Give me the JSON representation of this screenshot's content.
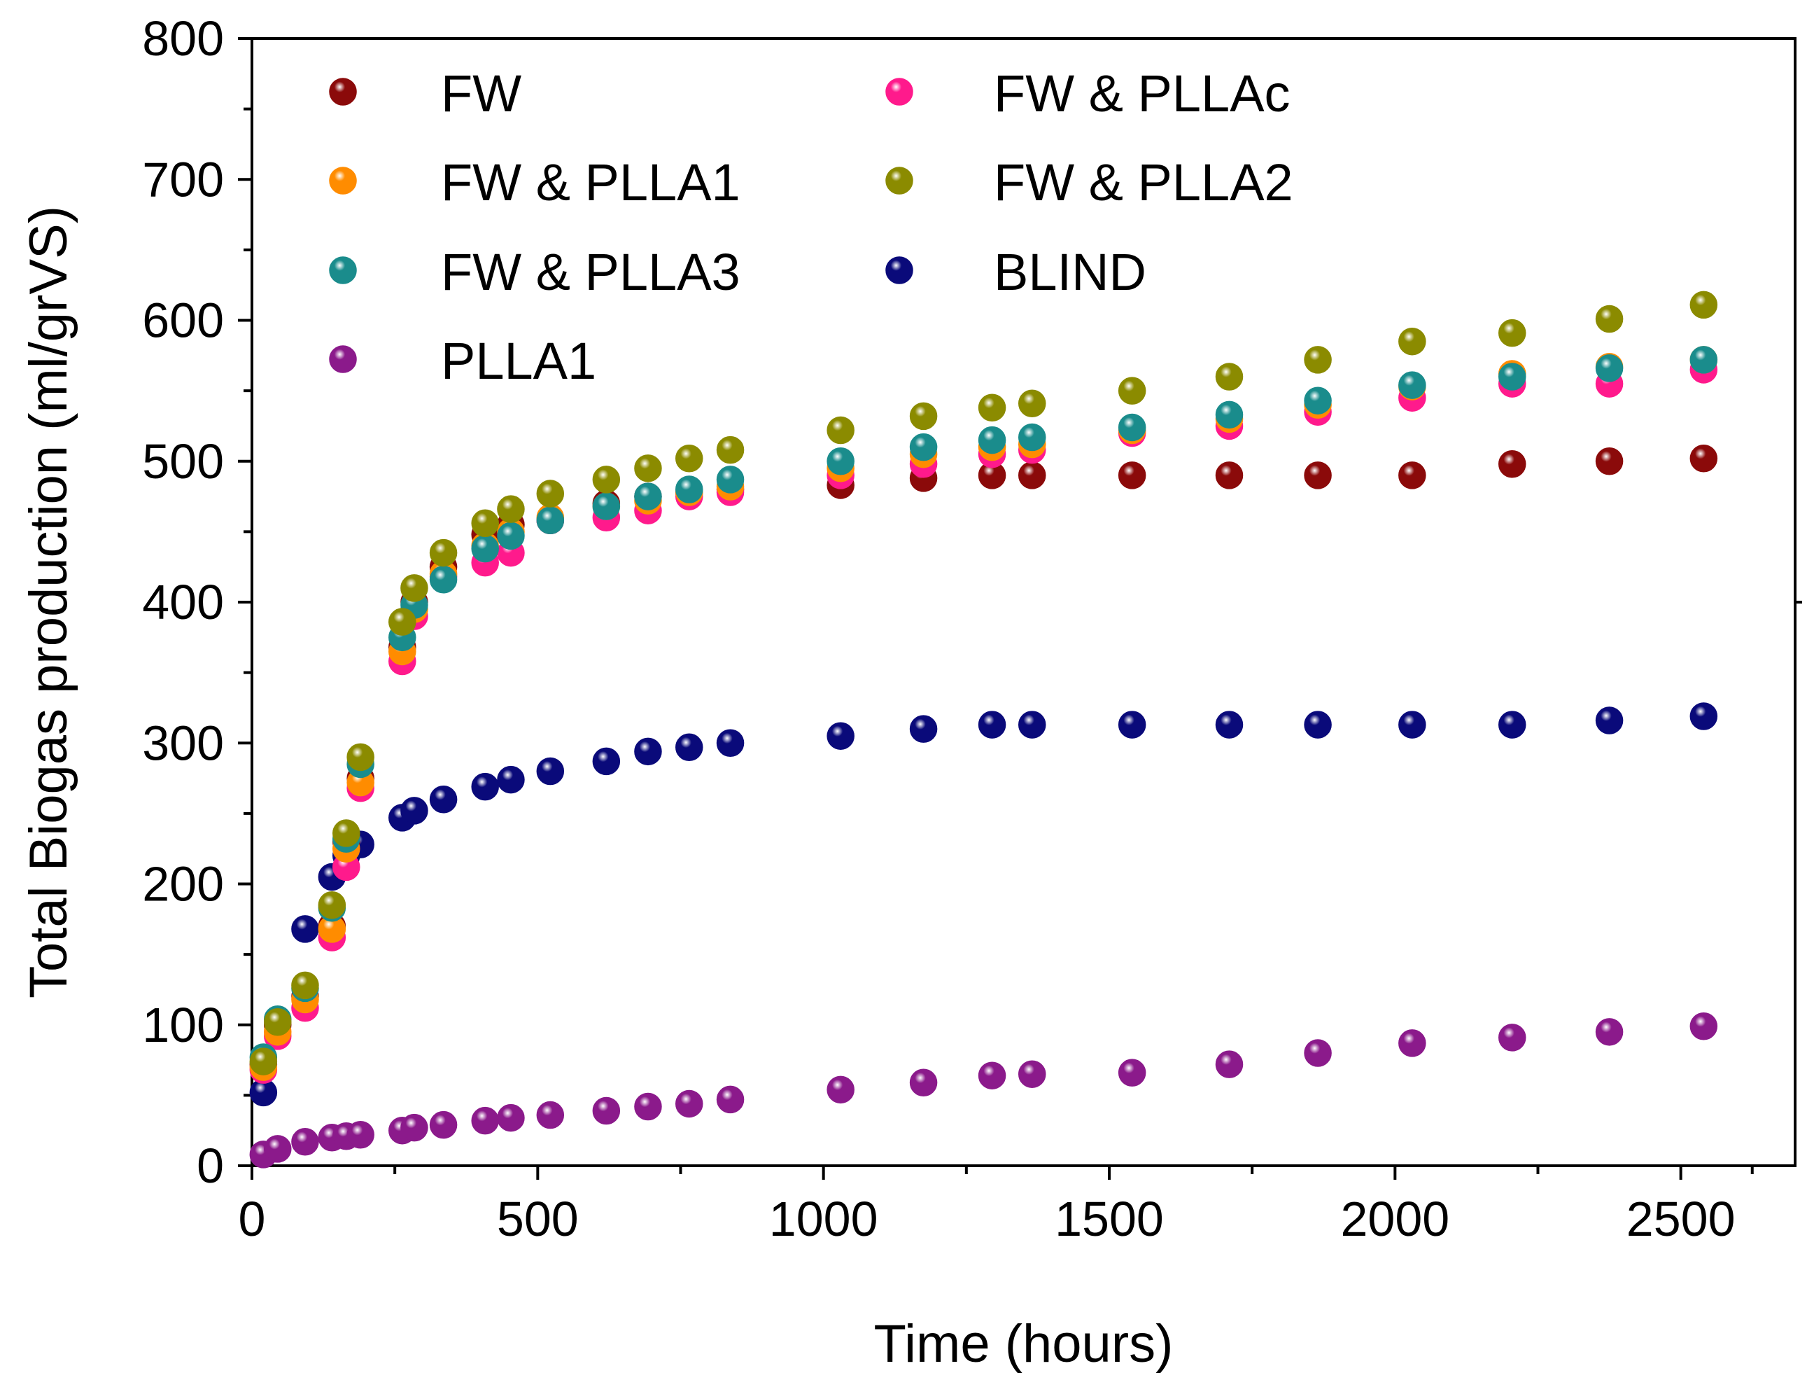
{
  "chart_data": {
    "type": "scatter",
    "title": "",
    "xlabel": "Time (hours)",
    "ylabel": "Total Biogas production (ml/grVS)",
    "xlim": [
      0,
      2700
    ],
    "ylim": [
      0,
      800
    ],
    "xticks": [
      0,
      500,
      1000,
      1500,
      2000,
      2500
    ],
    "yticks": [
      0,
      100,
      200,
      300,
      400,
      500,
      600,
      700,
      800
    ],
    "xtick_labels": [
      "0",
      "500",
      "1000",
      "1500",
      "2000",
      "2500"
    ],
    "ytick_labels": [
      "0",
      "100",
      "200",
      "300",
      "400",
      "500",
      "600",
      "700",
      "800"
    ],
    "grid": false,
    "legend": "top-left, two columns",
    "series": [
      {
        "name": "FW",
        "color": "#8b0a0a",
        "x": [
          20,
          45,
          93,
          140,
          165,
          190,
          263,
          284,
          335,
          408,
          453,
          522,
          620,
          693,
          765,
          837,
          1030,
          1175,
          1295,
          1365,
          1540,
          1710,
          1865,
          2030,
          2205,
          2375,
          2540
        ],
        "y": [
          72,
          100,
          120,
          170,
          230,
          275,
          368,
          400,
          425,
          448,
          455,
          458,
          470,
          475,
          478,
          480,
          483,
          488,
          490,
          490,
          490,
          490,
          490,
          490,
          498,
          500,
          502
        ]
      },
      {
        "name": "FW & PLLAc",
        "color": "#ff1a8c",
        "x": [
          20,
          45,
          93,
          140,
          165,
          190,
          263,
          284,
          335,
          408,
          453,
          522,
          620,
          693,
          765,
          837,
          1030,
          1175,
          1295,
          1365,
          1540,
          1710,
          1865,
          2030,
          2205,
          2375,
          2540
        ],
        "y": [
          68,
          92,
          112,
          162,
          212,
          268,
          358,
          390,
          418,
          428,
          435,
          458,
          460,
          465,
          475,
          478,
          490,
          498,
          505,
          508,
          520,
          525,
          535,
          545,
          555,
          555,
          565
        ]
      },
      {
        "name": "FW & PLLA1",
        "color": "#ff8c00",
        "x": [
          20,
          45,
          93,
          140,
          165,
          190,
          263,
          284,
          335,
          408,
          453,
          522,
          620,
          693,
          765,
          837,
          1030,
          1175,
          1295,
          1365,
          1540,
          1710,
          1865,
          2030,
          2205,
          2375,
          2540
        ],
        "y": [
          70,
          95,
          118,
          168,
          225,
          272,
          365,
          395,
          420,
          440,
          450,
          460,
          468,
          472,
          478,
          482,
          495,
          505,
          510,
          512,
          522,
          530,
          540,
          553,
          562,
          567,
          572
        ]
      },
      {
        "name": "FW & PLLA2",
        "color": "#8b8b00",
        "x": [
          20,
          45,
          93,
          140,
          165,
          190,
          263,
          284,
          335,
          408,
          453,
          522,
          620,
          693,
          765,
          837,
          1030,
          1175,
          1295,
          1365,
          1540,
          1710,
          1865,
          2030,
          2205,
          2375,
          2540
        ],
        "y": [
          74,
          102,
          128,
          185,
          236,
          290,
          386,
          410,
          435,
          456,
          466,
          477,
          487,
          495,
          502,
          508,
          522,
          532,
          538,
          541,
          550,
          560,
          572,
          585,
          591,
          601,
          611
        ]
      },
      {
        "name": "FW & PLLA3",
        "color": "#1a8c8c",
        "x": [
          20,
          45,
          93,
          140,
          165,
          190,
          263,
          284,
          335,
          408,
          453,
          522,
          620,
          693,
          765,
          837,
          1030,
          1175,
          1295,
          1365,
          1540,
          1710,
          1865,
          2030,
          2205,
          2375,
          2540
        ],
        "y": [
          77,
          104,
          126,
          183,
          232,
          285,
          375,
          398,
          416,
          438,
          447,
          458,
          468,
          475,
          480,
          487,
          500,
          510,
          515,
          517,
          524,
          533,
          543,
          554,
          560,
          566,
          572
        ]
      },
      {
        "name": "BLIND",
        "color": "#0a0a7a",
        "x": [
          20,
          93,
          140,
          165,
          190,
          263,
          284,
          335,
          408,
          453,
          522,
          620,
          693,
          765,
          837,
          1030,
          1175,
          1295,
          1365,
          1540,
          1710,
          1865,
          2030,
          2205,
          2375,
          2540
        ],
        "y": [
          52,
          168,
          205,
          220,
          228,
          247,
          252,
          260,
          269,
          274,
          280,
          287,
          294,
          297,
          300,
          305,
          310,
          313,
          313,
          313,
          313,
          313,
          313,
          313,
          316,
          319
        ]
      },
      {
        "name": "PLLA1",
        "color": "#8b1a8b",
        "x": [
          20,
          45,
          93,
          140,
          165,
          190,
          263,
          284,
          335,
          408,
          453,
          522,
          620,
          693,
          765,
          837,
          1030,
          1175,
          1295,
          1365,
          1540,
          1710,
          1865,
          2030,
          2205,
          2375,
          2540
        ],
        "y": [
          8,
          12,
          17,
          20,
          21,
          22,
          25,
          27,
          29,
          32,
          34,
          36,
          39,
          42,
          44,
          47,
          54,
          59,
          64,
          65,
          66,
          72,
          80,
          87,
          91,
          95,
          99
        ]
      }
    ]
  }
}
